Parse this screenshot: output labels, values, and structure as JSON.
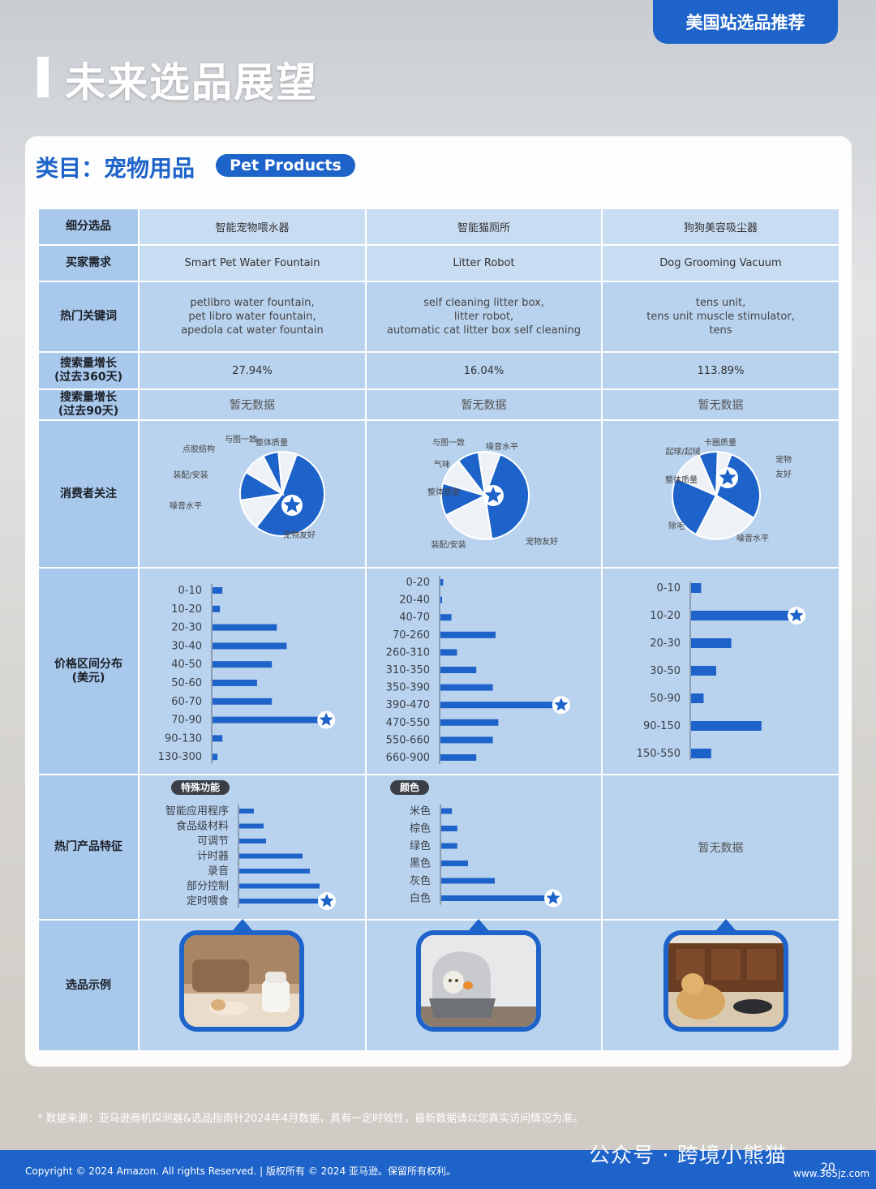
{
  "header": {
    "tag": "美国站选品推荐",
    "title": "未来选品展望"
  },
  "category": {
    "label": "类目：宠物用品",
    "en": "Pet Products"
  },
  "rows": {
    "subcategory": "细分选品",
    "demand": "买家需求",
    "keywords": "热门关键词",
    "growth360": "搜索量增长\n(过去360天)",
    "growth90": "搜索量增长\n(过去90天)",
    "consumer": "消费者关注",
    "price": "价格区间分布\n(美元)",
    "features": "热门产品特征",
    "examples": "选品示例"
  },
  "columns": [
    {
      "name": "智能宠物喂水器",
      "demand": "Smart Pet Water Fountain",
      "keywords": [
        "petlibro water fountain,",
        "pet libro water fountain,",
        "apedola cat water fountain"
      ],
      "growth360": "27.94%",
      "growth90": "暂无数据",
      "image_alt": "cat water fountain"
    },
    {
      "name": "智能猫厕所",
      "demand": "Litter Robot",
      "keywords": [
        "self cleaning litter box,",
        "litter robot,",
        "automatic cat litter box self cleaning"
      ],
      "growth360": "16.04%",
      "growth90": "暂无数据",
      "image_alt": "cat litter box"
    },
    {
      "name": "狗狗美容吸尘器",
      "demand": "Dog Grooming Vacuum",
      "keywords": [
        "tens unit,",
        "tens unit muscle stimulator,",
        "tens"
      ],
      "growth360": "113.89%",
      "growth90": "暂无数据",
      "image_alt": "dog with vacuum"
    }
  ],
  "features_col3": "暂无数据",
  "chart_data": [
    {
      "type": "pie",
      "chart": "consumer-1",
      "labels": [
        "宠物友好",
        "噪音水平",
        "装配/安装",
        "点胶结构",
        "与图一致",
        "整体质量"
      ],
      "values": [
        55,
        12,
        11,
        9,
        6,
        7
      ]
    },
    {
      "type": "pie",
      "chart": "consumer-2",
      "labels": [
        "宠物友好",
        "装配/安装",
        "整体质量",
        "气味",
        "与图一致",
        "噪音水平"
      ],
      "values": [
        42,
        20,
        12,
        10,
        8,
        8
      ]
    },
    {
      "type": "pie",
      "chart": "consumer-3",
      "labels": [
        "宠物友好",
        "噪音水平",
        "除毛",
        "整体质量",
        "起球/起绒",
        "卡圈质量"
      ],
      "values": [
        28,
        24,
        24,
        12,
        7,
        5
      ]
    },
    {
      "type": "bar",
      "chart": "price-1",
      "categories": [
        "0-10",
        "10-20",
        "20-30",
        "30-40",
        "40-50",
        "50-60",
        "60-70",
        "70-90",
        "90-130",
        "130-300"
      ],
      "values": [
        2,
        1.5,
        13,
        15,
        12,
        9,
        12,
        22,
        2,
        1
      ]
    },
    {
      "type": "bar",
      "chart": "price-2",
      "categories": [
        "0-20",
        "20-40",
        "40-70",
        "70-260",
        "260-310",
        "310-350",
        "350-390",
        "390-470",
        "470-550",
        "550-660",
        "660-900"
      ],
      "values": [
        0.5,
        0.3,
        2,
        10,
        3,
        6.5,
        9.5,
        21,
        10.5,
        9.5,
        6.5
      ]
    },
    {
      "type": "bar",
      "chart": "price-3",
      "categories": [
        "0-10",
        "10-20",
        "20-30",
        "30-50",
        "50-90",
        "90-150",
        "150-550"
      ],
      "values": [
        2,
        20,
        8,
        5,
        2.5,
        14,
        4
      ]
    },
    {
      "type": "bar",
      "chart": "features-1",
      "title": "特殊功能",
      "categories": [
        "智能应用程序",
        "食品级材料",
        "可调节",
        "计时器",
        "录音",
        "部分控制",
        "定时喂食"
      ],
      "values": [
        3,
        5,
        5.5,
        13,
        14.5,
        16.5,
        17
      ]
    },
    {
      "type": "bar",
      "chart": "features-2",
      "title": "颜色",
      "categories": [
        "米色",
        "棕色",
        "绿色",
        "黑色",
        "灰色",
        "白色"
      ],
      "values": [
        2,
        3,
        3,
        5,
        10,
        20
      ]
    }
  ],
  "footnote": "* 数据来源：亚马逊商机探测器&选品指南针2024年4月数据，具有一定时效性，最新数据请以您真实访问情况为准。",
  "footer": {
    "copyright": "Copyright © 2024 Amazon. All rights Reserved. | 版权所有 © 2024 亚马逊。保留所有权利。",
    "watermark": "公众号 · 跨境小熊猫",
    "url": "www.365jz.com",
    "page": "20"
  },
  "colors": {
    "accent": "#1d63c9",
    "cell": "#b9d3ef",
    "header": "#a8c8ec"
  }
}
